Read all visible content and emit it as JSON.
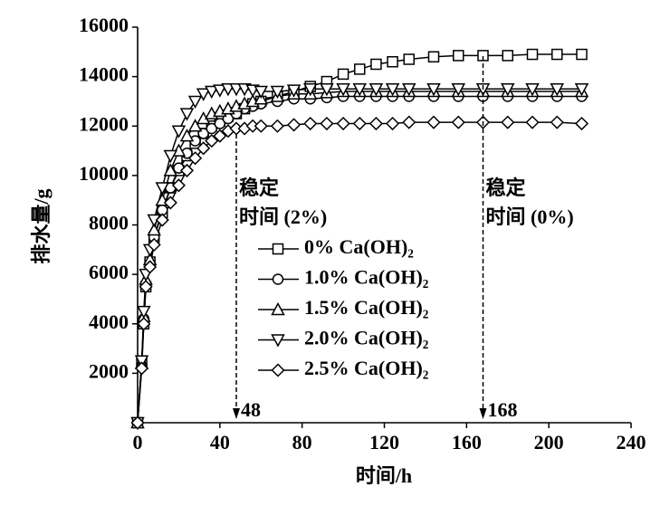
{
  "chart_data": {
    "type": "line",
    "xlabel": "时间/h",
    "ylabel": "排水量/g",
    "xlim": [
      0,
      240
    ],
    "xticks": [
      0,
      40,
      80,
      120,
      160,
      200,
      240
    ],
    "ylim": [
      0,
      16000
    ],
    "yticks": [
      2000,
      4000,
      6000,
      8000,
      10000,
      12000,
      14000,
      16000
    ],
    "x": [
      0,
      2,
      3,
      4,
      6,
      8,
      12,
      16,
      20,
      24,
      28,
      32,
      36,
      40,
      44,
      48,
      52,
      56,
      60,
      68,
      76,
      84,
      92,
      100,
      108,
      116,
      124,
      132,
      144,
      156,
      168,
      180,
      192,
      204,
      216
    ],
    "series": [
      {
        "name": "0% Ca(OH)₂",
        "color": "#000000",
        "marker": "square",
        "values": [
          0,
          2500,
          4000,
          5500,
          6500,
          7500,
          8500,
          9500,
          10200,
          10800,
          11300,
          11700,
          12000,
          12200,
          12400,
          12500,
          12700,
          12900,
          13000,
          13200,
          13400,
          13600,
          13800,
          14100,
          14300,
          14500,
          14600,
          14700,
          14800,
          14850,
          14850,
          14850,
          14900,
          14900,
          14900
        ]
      },
      {
        "name": "1.0% Ca(OH)₂",
        "color": "#000000",
        "marker": "circle",
        "values": [
          0,
          2300,
          4200,
          5600,
          6400,
          7500,
          8600,
          9500,
          10300,
          10900,
          11400,
          11700,
          11900,
          12100,
          12300,
          12500,
          12700,
          12800,
          12900,
          13000,
          13100,
          13100,
          13150,
          13200,
          13200,
          13200,
          13200,
          13200,
          13200,
          13200,
          13200,
          13200,
          13200,
          13200,
          13200
        ]
      },
      {
        "name": "1.5% Ca(OH)₂",
        "color": "#000000",
        "marker": "triangle-up",
        "values": [
          0,
          2400,
          4300,
          5800,
          6600,
          7800,
          9000,
          10200,
          11000,
          11600,
          12000,
          12300,
          12500,
          12600,
          12700,
          12800,
          12900,
          13000,
          13100,
          13200,
          13300,
          13300,
          13350,
          13400,
          13400,
          13400,
          13400,
          13400,
          13400,
          13400,
          13400,
          13400,
          13400,
          13400,
          13400
        ]
      },
      {
        "name": "2.0% Ca(OH)₂",
        "color": "#000000",
        "marker": "triangle-down",
        "values": [
          0,
          2500,
          4500,
          6000,
          7000,
          8200,
          9500,
          10800,
          11800,
          12500,
          13000,
          13300,
          13400,
          13450,
          13500,
          13500,
          13500,
          13450,
          13400,
          13400,
          13450,
          13500,
          13500,
          13500,
          13500,
          13500,
          13500,
          13500,
          13500,
          13500,
          13500,
          13500,
          13500,
          13500,
          13500
        ]
      },
      {
        "name": "2.5% Ca(OH)₂",
        "color": "#000000",
        "marker": "diamond",
        "values": [
          0,
          2200,
          4000,
          5500,
          6300,
          7200,
          8200,
          8900,
          9600,
          10200,
          10700,
          11100,
          11400,
          11600,
          11800,
          11900,
          11900,
          12000,
          12000,
          12000,
          12050,
          12100,
          12100,
          12100,
          12100,
          12100,
          12100,
          12150,
          12150,
          12150,
          12150,
          12150,
          12150,
          12150,
          12100
        ]
      }
    ],
    "annotations": [
      {
        "x": 48,
        "text": [
          "稳定",
          "时间 (2%)"
        ]
      },
      {
        "x": 168,
        "text": [
          "稳定",
          "时间 (0%)"
        ]
      }
    ]
  }
}
